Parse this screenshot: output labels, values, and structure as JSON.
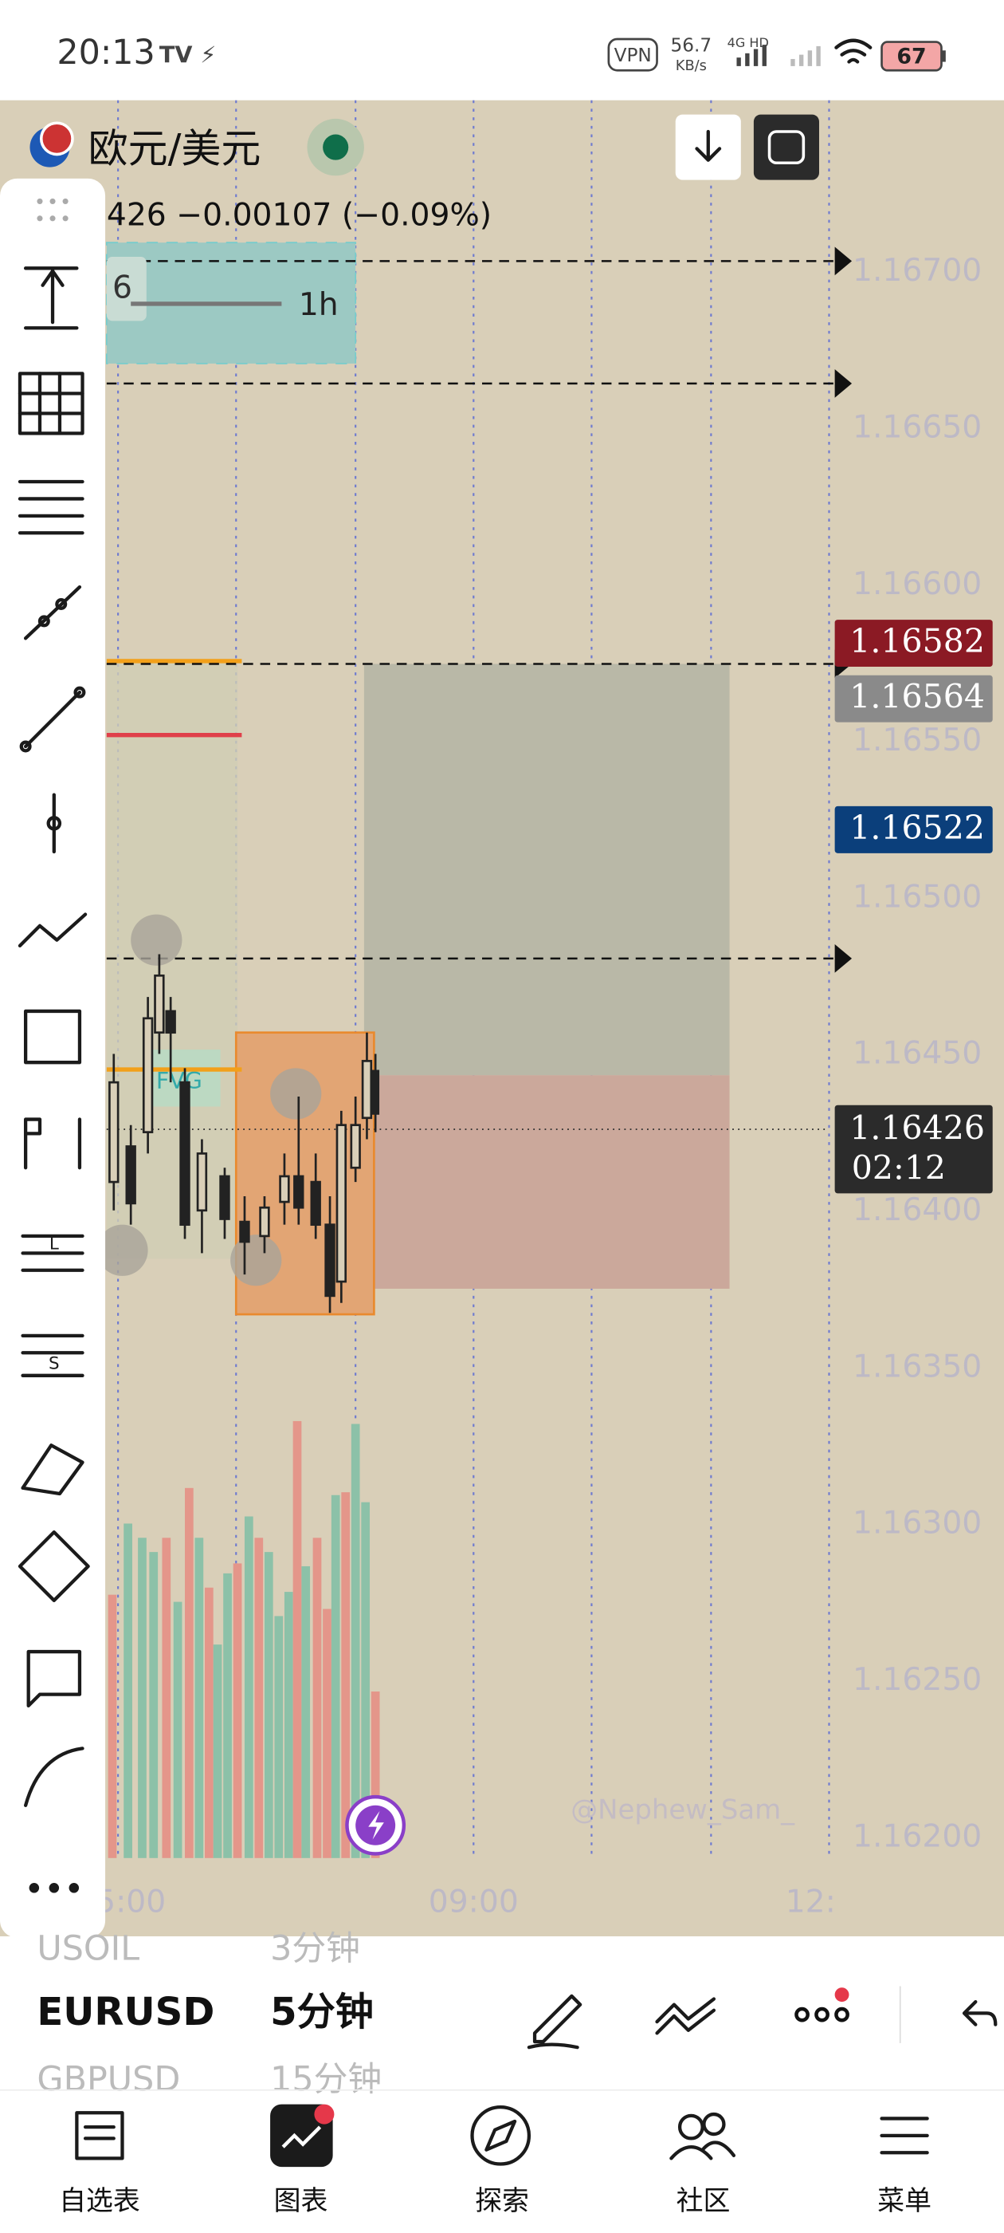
{
  "status_bar": {
    "time": "20:13",
    "vpn": "VPN",
    "network_speed": "56.7",
    "speed_unit": "KB/s",
    "network": "4G HD",
    "battery": "67"
  },
  "chart": {
    "symbol": "欧元/美元",
    "change": "426  −0.00107 (−0.09%)",
    "interval_badge": "6",
    "interval": "1h",
    "fvg_label": "FVG",
    "watermark": "@Nephew_Sam_",
    "price_axis": [
      "1.16700",
      "1.16650",
      "1.16600",
      "1.16550",
      "1.16500",
      "1.16450",
      "1.16400",
      "1.16350",
      "1.16300",
      "1.16250",
      "1.16200"
    ],
    "price_tags": [
      "1.16582",
      "1.16564",
      "1.16522",
      "1.16426"
    ],
    "countdown": "02:12",
    "time_axis": [
      "5:00",
      "09:00",
      "12:"
    ]
  },
  "watchlist": [
    {
      "symbol": "USOIL",
      "interval": "3分钟"
    },
    {
      "symbol": "EURUSD",
      "interval": "5分钟"
    },
    {
      "symbol": "GBPUSD",
      "interval": "15分钟"
    }
  ],
  "bottom_nav": [
    "自选表",
    "图表",
    "探索",
    "社区",
    "菜单"
  ]
}
